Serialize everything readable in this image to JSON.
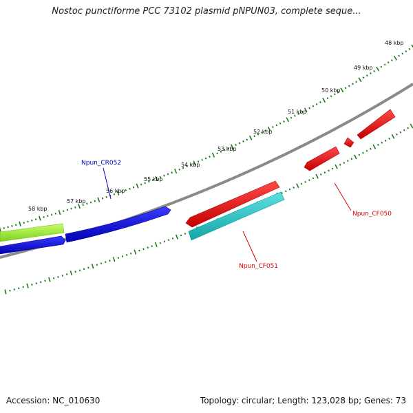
{
  "header": {
    "title": "Nostoc punctiforme PCC 73102 plasmid pNPUN03, complete seque..."
  },
  "footer": {
    "accession": "Accession: NC_010630",
    "summary": "Topology: circular; Length: 123,028 bp; Genes: 73"
  },
  "colors": {
    "backbone": "#8a8a8a",
    "tick": "#1a7a1a",
    "red": "#ee0000",
    "blue": "#0000dd",
    "cyan": "#22c8c8",
    "lime": "#a8f040"
  },
  "scale_labels": [
    "48 kbp",
    "49 kbp",
    "50 kbp",
    "51 kbp",
    "52 kbp",
    "53 kbp",
    "54 kbp",
    "55 kbp",
    "56 kbp",
    "57 kbp",
    "58 kbp"
  ],
  "gene_labels": [
    {
      "text": "Npun_CR052",
      "color": "#0000cc"
    },
    {
      "text": "Npun_CF050",
      "color": "#dd0000"
    },
    {
      "text": "Npun_CF051",
      "color": "#dd0000"
    }
  ]
}
